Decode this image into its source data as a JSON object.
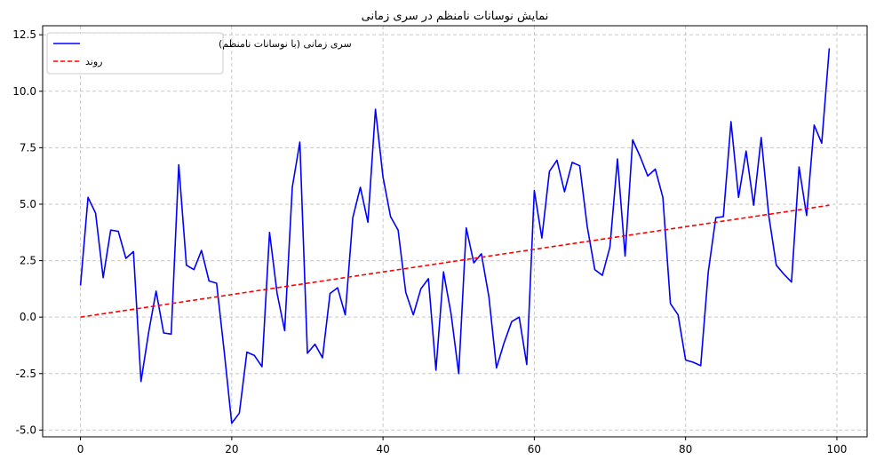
{
  "chart_data": {
    "type": "line",
    "title": "نمایش نوسانات نامنظم در سری زمانی",
    "xlabel": "",
    "ylabel": "",
    "xlim": [
      -5,
      104
    ],
    "ylim": [
      -5.3,
      12.9
    ],
    "x_ticks": [
      0,
      20,
      40,
      60,
      80,
      100
    ],
    "y_ticks": [
      -5.0,
      -2.5,
      0.0,
      2.5,
      5.0,
      7.5,
      10.0,
      12.5
    ],
    "x_tick_labels": [
      "0",
      "20",
      "40",
      "60",
      "80",
      "100"
    ],
    "y_tick_labels": [
      "-5.0",
      "-2.5",
      "0.0",
      "2.5",
      "5.0",
      "7.5",
      "10.0",
      "12.5"
    ],
    "grid": true,
    "legend_position": "top-left",
    "series": [
      {
        "name": "سری زمانی (با نوسانات نامنظم)",
        "color": "#0000ff",
        "style": "solid",
        "x": [
          0,
          1,
          2,
          3,
          4,
          5,
          6,
          7,
          8,
          9,
          10,
          11,
          12,
          13,
          14,
          15,
          16,
          17,
          18,
          19,
          20,
          21,
          22,
          23,
          24,
          25,
          26,
          27,
          28,
          29,
          30,
          31,
          32,
          33,
          34,
          35,
          36,
          37,
          38,
          39,
          40,
          41,
          42,
          43,
          44,
          45,
          46,
          47,
          48,
          49,
          50,
          51,
          52,
          53,
          54,
          55,
          56,
          57,
          58,
          59,
          60,
          61,
          62,
          63,
          64,
          65,
          66,
          67,
          68,
          69,
          70,
          71,
          72,
          73,
          74,
          75,
          76,
          77,
          78,
          79,
          80,
          81,
          82,
          83,
          84,
          85,
          86,
          87,
          88,
          89,
          90,
          91,
          92,
          93,
          94,
          95,
          96,
          97,
          98,
          99
        ],
        "y": [
          1.4,
          5.3,
          4.6,
          1.75,
          3.85,
          3.8,
          2.6,
          2.9,
          -2.85,
          -0.7,
          1.15,
          -0.7,
          -0.75,
          6.75,
          2.3,
          2.1,
          2.95,
          1.6,
          1.5,
          -1.5,
          -4.7,
          -4.25,
          -1.55,
          -1.7,
          -2.2,
          3.75,
          1.05,
          -0.6,
          5.75,
          7.75,
          -1.6,
          -1.2,
          -1.8,
          1.05,
          1.3,
          0.1,
          4.4,
          5.75,
          4.2,
          9.2,
          6.2,
          4.45,
          3.85,
          1.1,
          0.1,
          1.25,
          1.7,
          -2.35,
          2.0,
          0.15,
          -2.5,
          3.95,
          2.4,
          2.8,
          0.9,
          -2.25,
          -1.15,
          -0.2,
          0.0,
          -2.1,
          5.6,
          3.5,
          6.45,
          6.95,
          5.55,
          6.85,
          6.7,
          4.0,
          2.1,
          1.85,
          3.1,
          7.0,
          2.7,
          7.85,
          7.1,
          6.25,
          6.55,
          5.3,
          0.6,
          0.1,
          -1.9,
          -2.0,
          -2.15,
          2.0,
          4.4,
          4.45,
          8.65,
          5.3,
          7.35,
          4.95,
          7.95,
          4.5,
          2.3,
          1.9,
          1.55,
          6.65,
          4.5,
          8.5,
          7.7,
          11.9
        ]
      },
      {
        "name": "روند",
        "color": "#ff0000",
        "style": "dashed",
        "x": [
          0,
          99
        ],
        "y": [
          0.0,
          4.95
        ]
      }
    ]
  }
}
